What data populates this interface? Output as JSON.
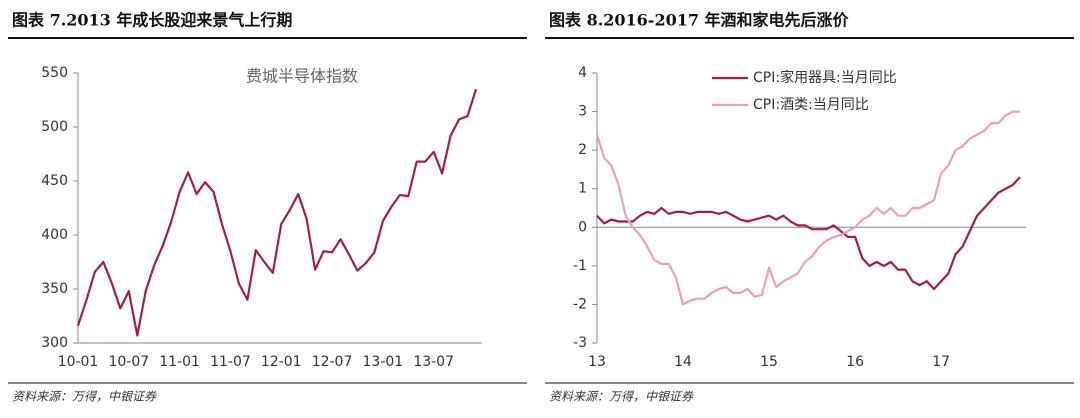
{
  "chart_data": [
    {
      "type": "line",
      "title": "图表 7.2013 年成长股迎来景气上行期",
      "source": "资料来源：万得，中银证券",
      "categories": [
        "10-01",
        null,
        null,
        null,
        null,
        null,
        "10-07",
        null,
        null,
        null,
        null,
        null,
        "11-01",
        null,
        null,
        null,
        null,
        null,
        "11-07",
        null,
        null,
        null,
        null,
        null,
        "12-01",
        null,
        null,
        null,
        null,
        null,
        "12-07",
        null,
        null,
        null,
        null,
        null,
        "13-01",
        null,
        null,
        null,
        null,
        null,
        "13-07",
        null,
        null,
        null,
        null,
        null
      ],
      "series": [
        {
          "name": "费城半导体指数",
          "color": "#a31f3f",
          "values": [
            316,
            340,
            366,
            375,
            355,
            332,
            348,
            307,
            348,
            372,
            390,
            412,
            440,
            458,
            438,
            449,
            440,
            410,
            385,
            355,
            340,
            386,
            375,
            365,
            410,
            423,
            438,
            415,
            368,
            385,
            384,
            396,
            382,
            367,
            374,
            384,
            413,
            426,
            437,
            436,
            468,
            468,
            477,
            457,
            492,
            507,
            510,
            535
          ]
        }
      ],
      "ylim": [
        300,
        550
      ],
      "yticks": [
        300,
        350,
        400,
        450,
        500,
        550
      ],
      "legend": "top-center"
    },
    {
      "type": "line",
      "title": "图表 8.2016-2017 年酒和家电先后涨价",
      "source": "资料来源：万得，中银证券",
      "categories": [
        "13",
        null,
        null,
        null,
        null,
        null,
        null,
        null,
        null,
        null,
        null,
        null,
        "14",
        null,
        null,
        null,
        null,
        null,
        null,
        null,
        null,
        null,
        null,
        null,
        "15",
        null,
        null,
        null,
        null,
        null,
        null,
        null,
        null,
        null,
        null,
        null,
        "16",
        null,
        null,
        null,
        null,
        null,
        null,
        null,
        null,
        null,
        null,
        null,
        "17",
        null,
        null,
        null,
        null,
        null,
        null,
        null,
        null,
        null,
        null,
        null
      ],
      "series": [
        {
          "name": "CPI:家用器具:当月同比",
          "color": "#a31f3f",
          "values": [
            0.3,
            0.1,
            0.2,
            0.15,
            0.15,
            0.15,
            0.3,
            0.4,
            0.35,
            0.5,
            0.35,
            0.4,
            0.4,
            0.35,
            0.4,
            0.4,
            0.4,
            0.35,
            0.4,
            0.3,
            0.2,
            0.15,
            0.2,
            0.25,
            0.3,
            0.2,
            0.3,
            0.15,
            0.05,
            0.05,
            -0.05,
            -0.05,
            -0.05,
            0.05,
            -0.1,
            -0.25,
            -0.25,
            -0.8,
            -1.0,
            -0.9,
            -1.0,
            -0.9,
            -1.1,
            -1.1,
            -1.4,
            -1.5,
            -1.4,
            -1.6,
            -1.4,
            -1.2,
            -0.7,
            -0.5,
            -0.1,
            0.3,
            0.5,
            0.7,
            0.9,
            1.0,
            1.1,
            1.3
          ]
        },
        {
          "name": "CPI:酒类:当月同比",
          "color": "#e8a3ad",
          "values": [
            2.4,
            1.8,
            1.6,
            1.1,
            0.3,
            0.0,
            -0.2,
            -0.5,
            -0.85,
            -0.95,
            -0.95,
            -1.3,
            -2.0,
            -1.9,
            -1.85,
            -1.85,
            -1.7,
            -1.6,
            -1.55,
            -1.7,
            -1.7,
            -1.6,
            -1.8,
            -1.75,
            -1.05,
            -1.55,
            -1.4,
            -1.3,
            -1.2,
            -0.9,
            -0.75,
            -0.5,
            -0.35,
            -0.25,
            -0.2,
            -0.1,
            0.0,
            0.2,
            0.3,
            0.5,
            0.35,
            0.5,
            0.3,
            0.3,
            0.5,
            0.5,
            0.6,
            0.7,
            1.4,
            1.6,
            2.0,
            2.1,
            2.3,
            2.4,
            2.5,
            2.7,
            2.7,
            2.9,
            3.0,
            3.0
          ]
        }
      ],
      "ylim": [
        -3,
        4
      ],
      "yticks": [
        -3,
        -2,
        -1,
        0,
        1,
        2,
        3,
        4
      ],
      "legend": "top-left"
    }
  ]
}
